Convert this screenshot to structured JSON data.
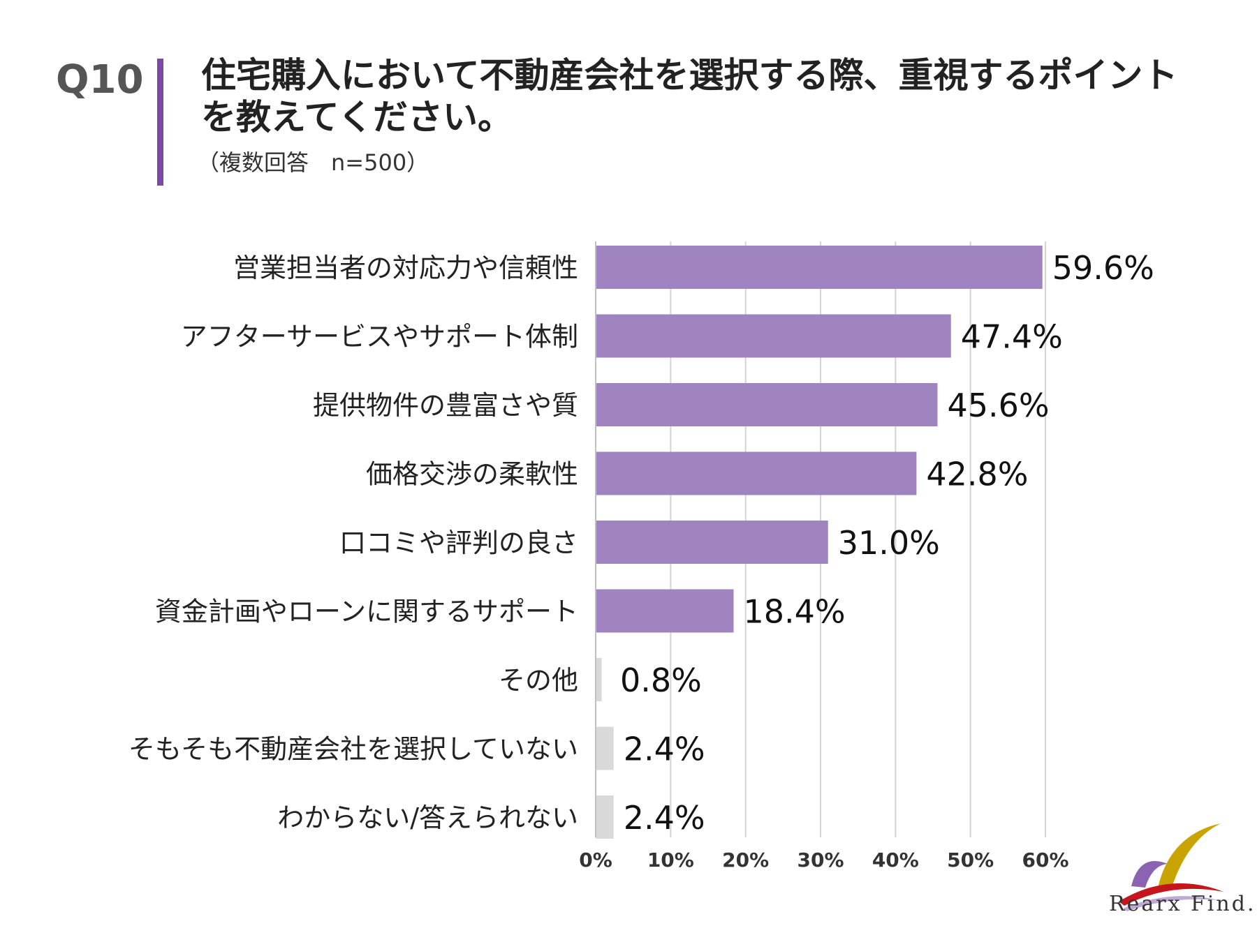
{
  "header": {
    "question_number": "Q10",
    "title": "住宅購入において不動産会社を選択する際、重視するポイントを教えてください。",
    "subtitle": "（複数回答　n=500）"
  },
  "colors": {
    "accent": "#7a4aa6",
    "bar_primary": "#9f84c0",
    "bar_muted": "#d9d9d9",
    "grid": "#d4d4d4"
  },
  "chart_data": {
    "type": "bar",
    "orientation": "horizontal",
    "categories": [
      "営業担当者の対応力や信頼性",
      "アフターサービスやサポート体制",
      "提供物件の豊富さや質",
      "価格交渉の柔軟性",
      "口コミや評判の良さ",
      "資金計画やローンに関するサポート",
      "その他",
      "そもそも不動産会社を選択していない",
      "わからない/答えられない"
    ],
    "values": [
      59.6,
      47.4,
      45.6,
      42.8,
      31.0,
      18.4,
      0.8,
      2.4,
      2.4
    ],
    "value_labels": [
      "59.6%",
      "47.4%",
      "45.6%",
      "42.8%",
      "31.0%",
      "18.4%",
      "0.8%",
      "2.4%",
      "2.4%"
    ],
    "highlight": [
      true,
      true,
      true,
      true,
      true,
      true,
      false,
      false,
      false
    ],
    "xlim": [
      0,
      60
    ],
    "xticks": [
      "0%",
      "10%",
      "20%",
      "30%",
      "40%",
      "50%",
      "60%"
    ],
    "grid": true,
    "xlabel": "",
    "ylabel": ""
  },
  "logo": {
    "text": "Rearx Find."
  }
}
